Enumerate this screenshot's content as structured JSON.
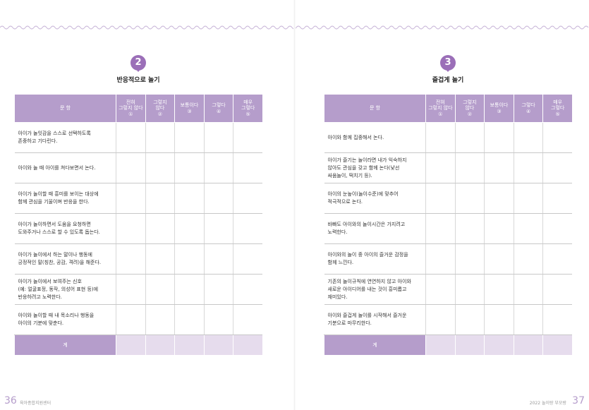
{
  "pages": [
    {
      "section": {
        "number": "2",
        "title": "반응적으로 놀기",
        "table": {
          "header": [
            [
              "문 항"
            ],
            [
              "전혀",
              "그렇지 않다",
              "①"
            ],
            [
              "그렇지",
              "않다",
              "②"
            ],
            [
              "보통이다",
              "③"
            ],
            [
              "그렇다",
              "④"
            ],
            [
              "매우",
              "그렇다",
              "⑤"
            ]
          ],
          "rows": [
            [
              "아이가 놀잇감을 스스로 선택하도록",
              "존중하고 기다린다."
            ],
            [
              "아이와 놀 때 아이를 쳐다보면서 논다."
            ],
            [
              "아이가 놀이할 때 흥미를 보이는 대상에",
              "함께 관심을 기울이며 반응을 한다."
            ],
            [
              "아이가 놀이하면서 도움을 요청하면",
              "도와주거나 스스로 할 수 있도록 돕는다."
            ],
            [
              "아이가 놀이에서 하는 말이나 행동에",
              "긍정적인 말(칭찬, 공감, 격려)을 해준다."
            ],
            [
              "아이가 놀이에서 보여주는 신호",
              "(예: 얼굴표정, 동작, 의성어 표현 등)에",
              "반응하려고 노력한다."
            ],
            [
              "아이와 놀이할 때 내 목소리나 행동을",
              "아이의 기분에 맞춘다."
            ]
          ],
          "total": "계"
        }
      },
      "footer": {
        "page_number": "36",
        "label": "육아종합지원센터"
      }
    },
    {
      "section": {
        "number": "3",
        "title": "즐겁게 놀기",
        "table": {
          "header": [
            [
              "문 항"
            ],
            [
              "전혀",
              "그렇지 않다",
              "①"
            ],
            [
              "그렇지",
              "않다",
              "②"
            ],
            [
              "보통이다",
              "③"
            ],
            [
              "그렇다",
              "④"
            ],
            [
              "매우",
              "그렇다",
              "⑤"
            ]
          ],
          "rows": [
            [
              "아이와 함께 집중해서 논다."
            ],
            [
              "아이가 즐기는 놀이라면 내가 익숙하지",
              "않아도 관심을 갖고 함께 논다(낯선",
              "싸움놀이, 떡치기 등)."
            ],
            [
              "아이의 눈높이(놀이수준)에 맞추어",
              "적극적으로 논다."
            ],
            [
              "바빠도 아이와의 놀이시간은 가지려고",
              "노력한다."
            ],
            [
              "아이와의 놀이 중 아이의 즐거운 감정을",
              "함께 느낀다."
            ],
            [
              "기존의 놀이규칙에 연연하지 않고 아이와",
              "새로운 아이디어를 내는 것이 흥미롭고",
              "재미있다."
            ],
            [
              "아이와 즐겁게 놀이를 시작해서 즐거운",
              "기분으로 마무리한다."
            ]
          ],
          "total": "계"
        }
      },
      "footer": {
        "page_number": "37",
        "label": "2022 놀이랑 부모랑"
      }
    }
  ]
}
